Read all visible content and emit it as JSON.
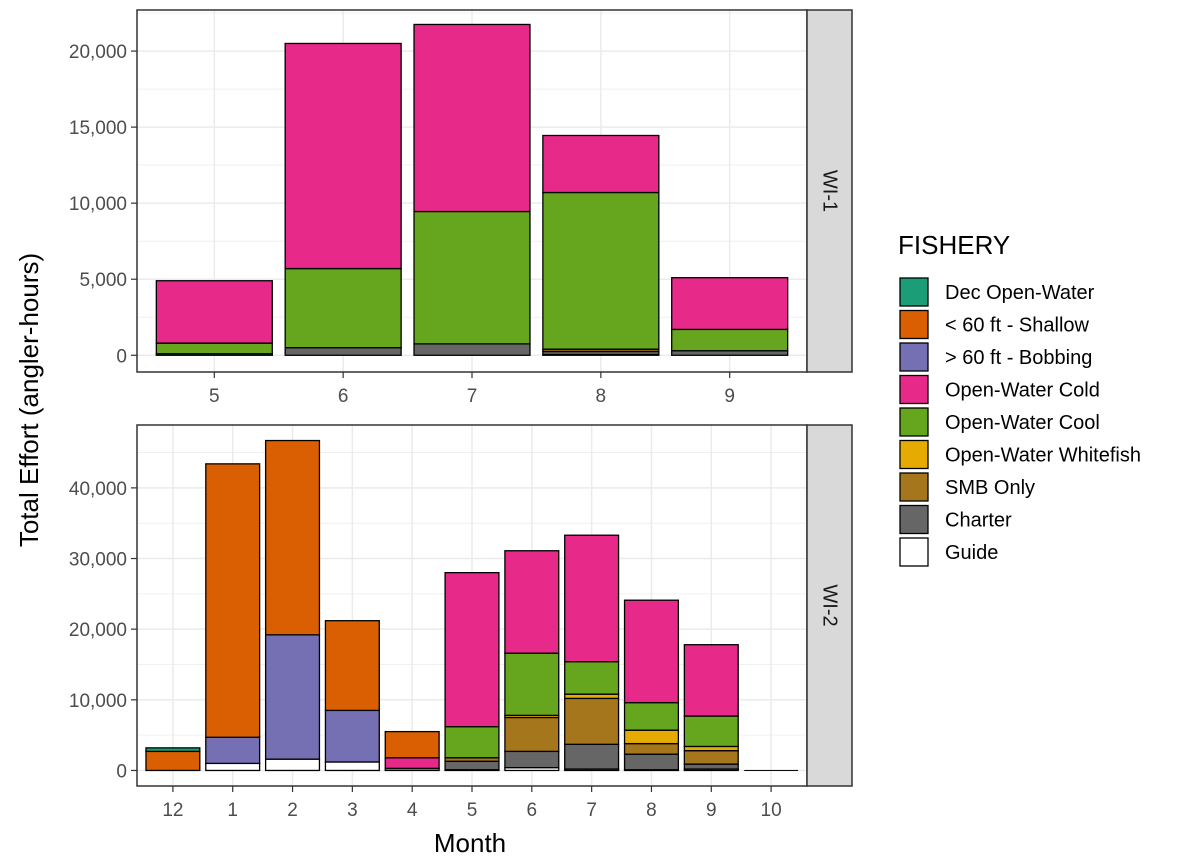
{
  "chart": {
    "ylabel": "Total Effort (angler-hours)",
    "xlabel": "Month",
    "legend_title": "FISHERY"
  },
  "chart_data": {
    "type": "bar",
    "stacked": true,
    "grid": true,
    "legend_placement": "right",
    "fisheries": [
      {
        "name": "Dec Open-Water",
        "color": "#1B9E77"
      },
      {
        "name": "< 60 ft - Shallow",
        "color": "#D95F02"
      },
      {
        "name": "> 60 ft - Bobbing",
        "color": "#7570B3"
      },
      {
        "name": "Open-Water Cold",
        "color": "#E7298A"
      },
      {
        "name": "Open-Water Cool",
        "color": "#66A61E"
      },
      {
        "name": "Open-Water Whitefish",
        "color": "#E6AB02"
      },
      {
        "name": "SMB Only",
        "color": "#A6761D"
      },
      {
        "name": "Charter",
        "color": "#666666"
      },
      {
        "name": "Guide",
        "color": "#FFFFFF"
      }
    ],
    "panels": [
      {
        "label": "WI-1",
        "ylim": [
          -1100,
          22700
        ],
        "yticks": [
          0,
          5000,
          10000,
          15000,
          20000
        ],
        "ytick_labels": [
          "0",
          "5,000",
          "10,000",
          "15,000",
          "20,000"
        ],
        "categories": [
          "5",
          "6",
          "7",
          "8",
          "9"
        ],
        "series": [
          {
            "name": "Guide",
            "values": [
              0,
              0,
              0,
              50,
              0
            ]
          },
          {
            "name": "Charter",
            "values": [
              100,
              500,
              750,
              200,
              300
            ]
          },
          {
            "name": "SMB Only",
            "values": [
              0,
              0,
              0,
              150,
              0
            ]
          },
          {
            "name": "Open-Water Cool",
            "values": [
              700,
              5200,
              8700,
              10300,
              1400
            ]
          },
          {
            "name": "Open-Water Cold",
            "values": [
              4100,
              14800,
              12300,
              3750,
              3400
            ]
          }
        ]
      },
      {
        "label": "WI-2",
        "ylim": [
          -2200,
          48900
        ],
        "yticks": [
          0,
          10000,
          20000,
          30000,
          40000
        ],
        "ytick_labels": [
          "0",
          "10,000",
          "20,000",
          "30,000",
          "40,000"
        ],
        "categories": [
          "12",
          "1",
          "2",
          "3",
          "4",
          "5",
          "6",
          "7",
          "8",
          "9",
          "10"
        ],
        "series": [
          {
            "name": "Guide",
            "values": [
              0,
              1000,
              1600,
              1200,
              0,
              100,
              400,
              200,
              100,
              200,
              0
            ]
          },
          {
            "name": "Charter",
            "values": [
              0,
              0,
              0,
              0,
              0,
              1200,
              2300,
              3500,
              2200,
              700,
              0
            ]
          },
          {
            "name": "SMB Only",
            "values": [
              0,
              0,
              0,
              0,
              0,
              500,
              4800,
              6500,
              1500,
              1900,
              0
            ]
          },
          {
            "name": "Open-Water Whitefish",
            "values": [
              0,
              0,
              0,
              0,
              0,
              0,
              300,
              600,
              1900,
              600,
              0
            ]
          },
          {
            "name": "Open-Water Cool",
            "values": [
              0,
              0,
              0,
              0,
              300,
              4400,
              8800,
              4600,
              3900,
              4300,
              0
            ]
          },
          {
            "name": "Open-Water Cold",
            "values": [
              0,
              0,
              0,
              0,
              1500,
              21800,
              14500,
              17900,
              14500,
              10100,
              0
            ]
          },
          {
            "name": "> 60 ft - Bobbing",
            "values": [
              0,
              3700,
              17600,
              7300,
              0,
              0,
              0,
              0,
              0,
              0,
              0
            ]
          },
          {
            "name": "< 60 ft - Shallow",
            "values": [
              2700,
              38700,
              27500,
              12700,
              3700,
              0,
              0,
              0,
              0,
              0,
              0
            ]
          },
          {
            "name": "Dec Open-Water",
            "values": [
              500,
              0,
              0,
              0,
              0,
              0,
              0,
              0,
              0,
              0,
              0
            ]
          }
        ]
      }
    ]
  }
}
